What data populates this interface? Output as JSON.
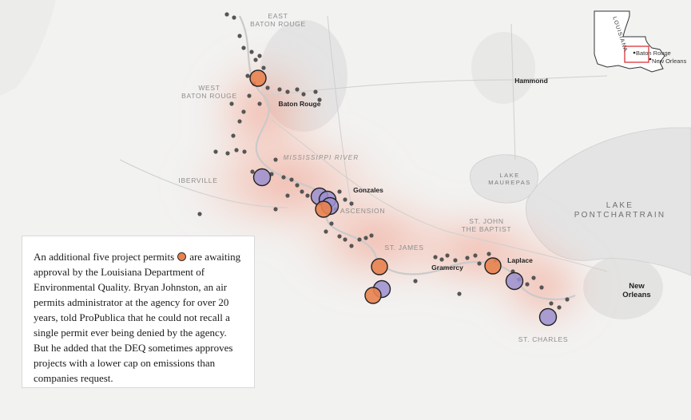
{
  "places": {
    "east_baton_rouge": "EAST\nBATON ROUGE",
    "west_baton_rouge": "WEST\nBATON ROUGE",
    "baton_rouge": "Baton Rouge",
    "hammond": "Hammond",
    "mississippi_river": "MISSISSIPPI RIVER",
    "iberville": "IBERVILLE",
    "gonzales": "Gonzales",
    "ascension": "ASCENSION",
    "lake_maurepas": "LAKE\nMAUREPAS",
    "lake_pontchartrain": "LAKE\nPONTCHARTRAIN",
    "st_john": "ST. JOHN\nTHE BAPTIST",
    "st_james": "ST. JAMES",
    "gramercy": "Gramercy",
    "laplace": "Laplace",
    "new_orleans": "New\nOrleans",
    "st_charles": "ST. CHARLES"
  },
  "inset": {
    "state": "LOUISIANA",
    "baton_rouge": "Baton Rouge",
    "new_orleans": "New Orleans"
  },
  "note": {
    "text_before": "An additional five project permits",
    "text_after": "are awaiting approval by the Louisiana Department of Environmental Quality. Bryan Johnston, an air permits administrator at the agency for over 20 years, told ProPublica that he could not recall a single permit ever being denied by the agency. But he added that the DEQ sometimes approves projects with a lower cap on emissions than companies request."
  },
  "legend_colors": {
    "pending_permit": "#e8824f",
    "approved_project": "#9b8fcf",
    "facility": "#555555",
    "risk_heat": "#f08a6e"
  },
  "markers": {
    "pending_permits": 5,
    "approved_projects": 7
  }
}
